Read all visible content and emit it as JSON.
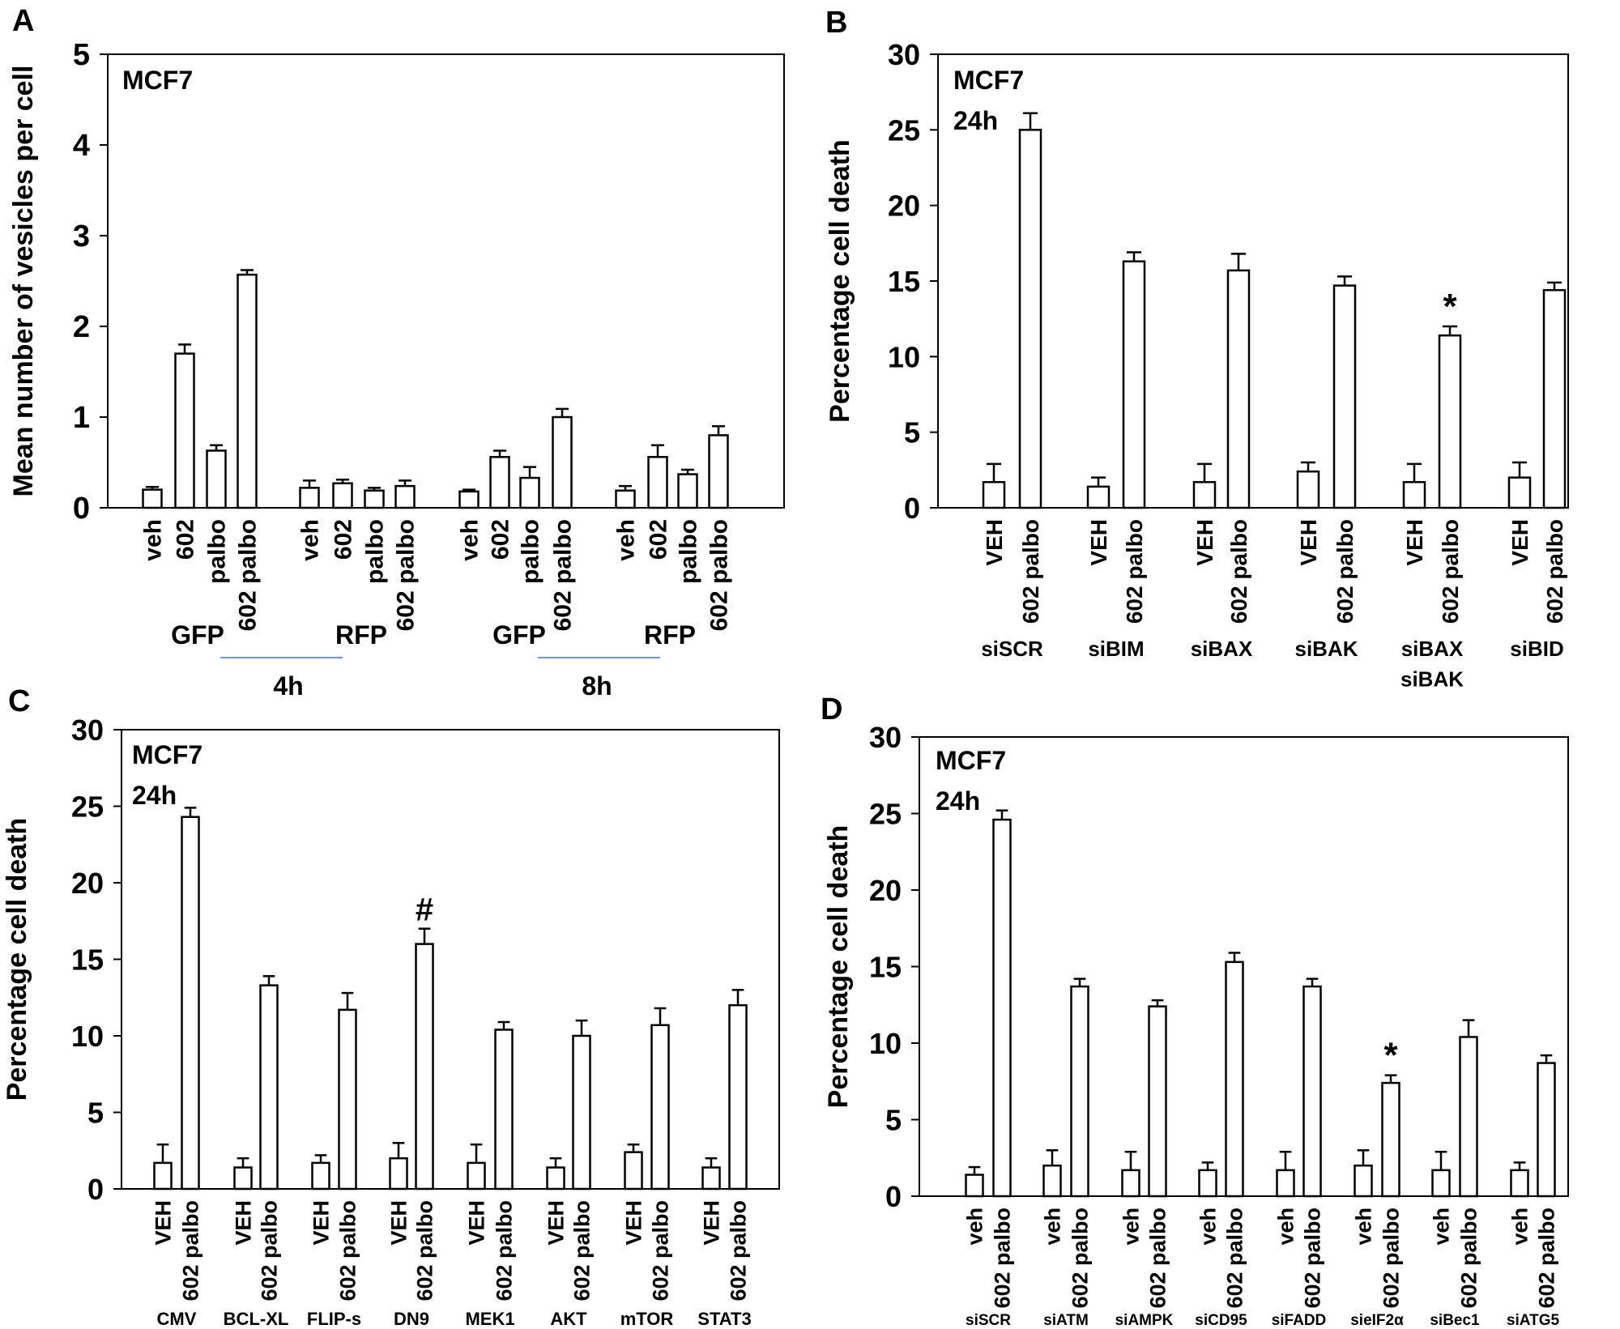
{
  "chart_data": [
    {
      "panel": "A",
      "type": "bar",
      "annotation": "MCF7",
      "ylabel": "Mean number of vesicles per cell",
      "ylim": [
        0,
        5
      ],
      "yticks": [
        "0",
        "1",
        "2",
        "3",
        "4",
        "5"
      ],
      "bar_fill": "#ffffff",
      "bar_stroke": "#000000",
      "categories": [
        "veh",
        "602",
        "palbo",
        "602 palbo",
        "veh",
        "602",
        "palbo",
        "602 palbo",
        "veh",
        "602",
        "palbo",
        "602 palbo",
        "veh",
        "602",
        "palbo",
        "602 palbo"
      ],
      "values": [
        0.2,
        1.7,
        0.63,
        2.57,
        0.22,
        0.27,
        0.19,
        0.24,
        0.18,
        0.56,
        0.33,
        1.0,
        0.19,
        0.56,
        0.37,
        0.8
      ],
      "errors": [
        0.03,
        0.1,
        0.06,
        0.05,
        0.08,
        0.04,
        0.03,
        0.06,
        0.02,
        0.07,
        0.12,
        0.09,
        0.05,
        0.13,
        0.05,
        0.1
      ],
      "group_labels": [
        "GFP",
        "RFP",
        "GFP",
        "RFP"
      ],
      "time_labels": [
        "4h",
        "8h"
      ],
      "time_line_color": "#4472c4"
    },
    {
      "panel": "B",
      "type": "bar",
      "annotation": "MCF7",
      "annotation2": "24h",
      "ylabel": "Percentage cell death",
      "ylim": [
        0,
        30
      ],
      "yticks": [
        "0",
        "5",
        "10",
        "15",
        "20",
        "25",
        "30"
      ],
      "categories": [
        "VEH",
        "602 palbo",
        "VEH",
        "602 palbo",
        "VEH",
        "602 palbo",
        "VEH",
        "602 palbo",
        "VEH",
        "602 palbo",
        "VEH",
        "602 palbo"
      ],
      "values": [
        1.7,
        25.0,
        1.4,
        16.3,
        1.7,
        15.7,
        2.4,
        14.7,
        1.7,
        11.4,
        2.0,
        14.4
      ],
      "errors": [
        1.2,
        1.1,
        0.6,
        0.6,
        1.2,
        1.1,
        0.6,
        0.6,
        1.2,
        0.6,
        1.0,
        0.5
      ],
      "markers": [
        "",
        "",
        "",
        "",
        "",
        "",
        "",
        "",
        "",
        "*",
        "",
        ""
      ],
      "group_labels": [
        "siSCR",
        "siBIM",
        "siBAX",
        "siBAK",
        "siBAX\nsiBAK",
        "siBID"
      ]
    },
    {
      "panel": "C",
      "type": "bar",
      "annotation": "MCF7",
      "annotation2": "24h",
      "ylabel": "Percentage cell death",
      "ylim": [
        0,
        30
      ],
      "yticks": [
        "0",
        "5",
        "10",
        "15",
        "20",
        "25",
        "30"
      ],
      "categories": [
        "VEH",
        "602 palbo",
        "VEH",
        "602 palbo",
        "VEH",
        "602 palbo",
        "VEH",
        "602 palbo",
        "VEH",
        "602 palbo",
        "VEH",
        "602 palbo",
        "VEH",
        "602 palbo",
        "VEH",
        "602 palbo"
      ],
      "values": [
        1.7,
        24.3,
        1.4,
        13.3,
        1.7,
        11.7,
        2.0,
        16.0,
        1.7,
        10.4,
        1.4,
        10.0,
        2.4,
        10.7,
        1.4,
        12.0
      ],
      "errors": [
        1.2,
        0.6,
        0.6,
        0.6,
        0.5,
        1.1,
        1.0,
        1.0,
        1.2,
        0.5,
        0.6,
        1.0,
        0.5,
        1.1,
        0.6,
        1.0
      ],
      "markers": [
        "",
        "",
        "",
        "",
        "",
        "",
        "",
        "#",
        "",
        "",
        "",
        "",
        "",
        "",
        "",
        ""
      ],
      "group_labels": [
        "CMV",
        "BCL-XL",
        "FLIP-s",
        "DN9",
        "MEK1",
        "AKT",
        "mTOR",
        "STAT3"
      ]
    },
    {
      "panel": "D",
      "type": "bar",
      "annotation": "MCF7",
      "annotation2": "24h",
      "ylabel": "Percentage cell death",
      "ylim": [
        0,
        30
      ],
      "yticks": [
        "0",
        "5",
        "10",
        "15",
        "20",
        "25",
        "30"
      ],
      "categories": [
        "veh",
        "602 palbo",
        "veh",
        "602 palbo",
        "veh",
        "602 palbo",
        "veh",
        "602 palbo",
        "veh",
        "602 palbo",
        "veh",
        "602 palbo",
        "veh",
        "602 palbo",
        "veh",
        "602 palbo"
      ],
      "values": [
        1.4,
        24.6,
        2.0,
        13.7,
        1.7,
        12.4,
        1.7,
        15.3,
        1.7,
        13.7,
        2.0,
        7.4,
        1.7,
        10.4,
        1.7,
        8.7
      ],
      "errors": [
        0.5,
        0.6,
        1.0,
        0.5,
        1.2,
        0.4,
        0.5,
        0.6,
        1.2,
        0.5,
        1.0,
        0.5,
        1.2,
        1.1,
        0.5,
        0.5
      ],
      "markers": [
        "",
        "",
        "",
        "",
        "",
        "",
        "",
        "",
        "",
        "",
        "",
        "*",
        "",
        "",
        "",
        ""
      ],
      "group_labels": [
        "siSCR",
        "siATM",
        "siAMPK",
        "siCD95",
        "siFADD",
        "sieIF2α",
        "siBec1",
        "siATG5"
      ]
    }
  ]
}
